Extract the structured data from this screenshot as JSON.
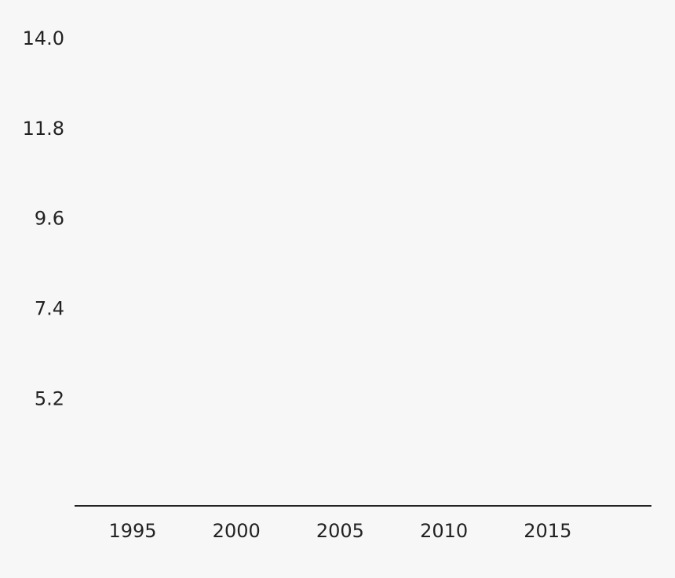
{
  "chart_data": {
    "type": "line",
    "xlim": [
      1992.2,
      2020.0
    ],
    "xticks": [
      1995,
      2000,
      2005,
      2010,
      2015
    ],
    "ylim": [
      2.6,
      14.0
    ],
    "yticks": [
      5.2,
      7.4,
      9.6,
      11.8,
      {
        "value": 14.0,
        "label": "14.0"
      }
    ],
    "grid": false
  }
}
